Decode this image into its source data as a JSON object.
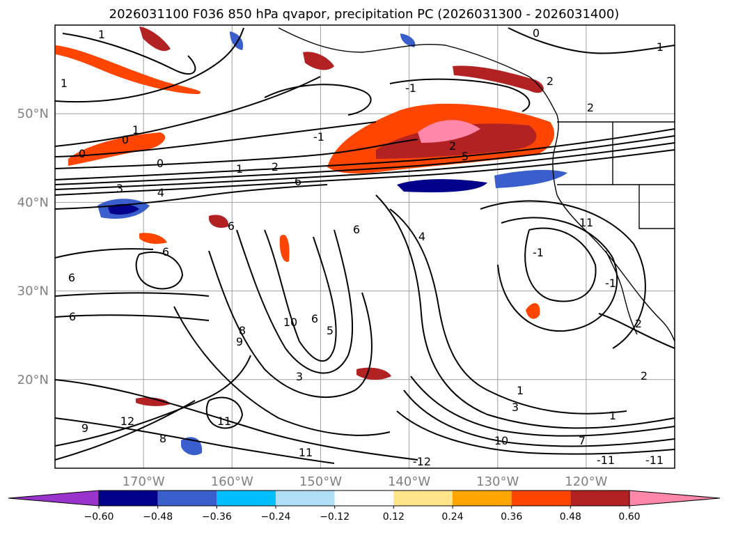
{
  "title": "2026031100 F036 850 hPa qvapor, precipitation PC (2026031300 - 2026031400)",
  "map": {
    "lon_range": [
      -180,
      -110
    ],
    "lat_range": [
      10,
      60
    ],
    "lat_labels": [
      "50°N",
      "40°N",
      "30°N",
      "20°N"
    ],
    "lon_labels": [
      "170°W",
      "160°W",
      "150°W",
      "140°W",
      "130°W",
      "120°W"
    ],
    "gridlines": true
  },
  "colorbar": {
    "extend": "both",
    "tick_labels": [
      "−0.60",
      "−0.48",
      "−0.36",
      "−0.24",
      "−0.12",
      "0.12",
      "0.24",
      "0.36",
      "0.48",
      "0.60"
    ],
    "colors": [
      "#9933cc",
      "#00008b",
      "#3a5fcd",
      "#00bfff",
      "#b0e0f8",
      "#ffffff",
      "#ffe58a",
      "#ffa500",
      "#ff4500",
      "#b22222",
      "#ff88aa"
    ]
  },
  "contour_labels": [
    "1",
    "0",
    "1",
    "1",
    "-1",
    "2",
    "2",
    "1",
    "0",
    "0",
    "-1",
    "2",
    "5",
    "0",
    "1",
    "2",
    "6",
    "3",
    "4",
    "6",
    "6",
    "6",
    "4",
    "-1",
    "6",
    "6",
    "10",
    "8",
    "9",
    "6",
    "5",
    "-1",
    "2",
    "3",
    "9",
    "12",
    "11",
    "8",
    "11",
    "1",
    "3",
    "10",
    "7",
    "1",
    "2",
    "-11",
    "-12",
    "-11",
    "11"
  ]
}
